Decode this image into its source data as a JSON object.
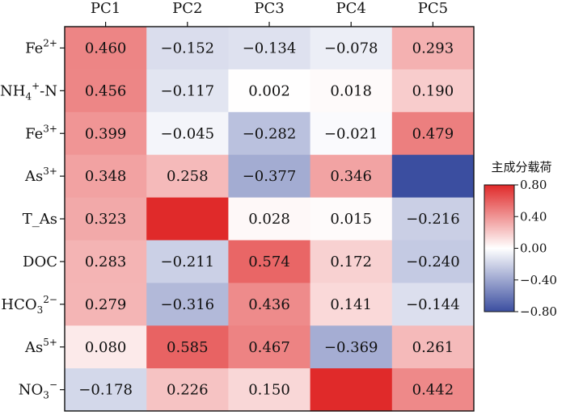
{
  "chart_data": {
    "type": "heatmap",
    "columns": [
      "PC1",
      "PC2",
      "PC3",
      "PC4",
      "PC5"
    ],
    "rows": [
      {
        "main": "Fe",
        "sup": "2+",
        "tail": ""
      },
      {
        "main": "NH",
        "sub": "4",
        "sup": "+",
        "tail": "-N"
      },
      {
        "main": "Fe",
        "sup": "3+",
        "tail": ""
      },
      {
        "main": "As",
        "sup": "3+",
        "tail": ""
      },
      {
        "main": "T_As",
        "tail": ""
      },
      {
        "main": "DOC",
        "tail": ""
      },
      {
        "main": "HCO",
        "sub": "3",
        "sup": "2−",
        "tail": ""
      },
      {
        "main": "As",
        "sup": "5+",
        "tail": ""
      },
      {
        "main": "NO",
        "sub": "3",
        "sup": "−",
        "tail": ""
      }
    ],
    "values": [
      [
        0.46,
        -0.152,
        -0.134,
        -0.078,
        0.293
      ],
      [
        0.456,
        -0.117,
        0.002,
        0.018,
        0.19
      ],
      [
        0.399,
        -0.045,
        -0.282,
        -0.021,
        0.479
      ],
      [
        0.348,
        0.258,
        -0.377,
        0.346,
        -0.8
      ],
      [
        0.323,
        0.8,
        0.028,
        0.015,
        -0.216
      ],
      [
        0.283,
        -0.211,
        0.574,
        0.172,
        -0.24
      ],
      [
        0.279,
        -0.316,
        0.436,
        0.141,
        -0.144
      ],
      [
        0.08,
        0.585,
        0.467,
        -0.369,
        0.261
      ],
      [
        -0.178,
        0.226,
        0.15,
        0.8,
        0.442
      ]
    ],
    "labels": [
      [
        "0.460",
        "−0.152",
        "−0.134",
        "−0.078",
        "0.293"
      ],
      [
        "0.456",
        "−0.117",
        "0.002",
        "0.018",
        "0.190"
      ],
      [
        "0.399",
        "−0.045",
        "−0.282",
        "−0.021",
        "0.479"
      ],
      [
        "0.348",
        "0.258",
        "−0.377",
        "0.346",
        ""
      ],
      [
        "0.323",
        "",
        "0.028",
        "0.015",
        "−0.216"
      ],
      [
        "0.283",
        "−0.211",
        "0.574",
        "0.172",
        "−0.240"
      ],
      [
        "0.279",
        "−0.316",
        "0.436",
        "0.141",
        "−0.144"
      ],
      [
        "0.080",
        "0.585",
        "0.467",
        "−0.369",
        "0.261"
      ],
      [
        "−0.178",
        "0.226",
        "0.150",
        "",
        "0.442"
      ]
    ],
    "colorbar": {
      "title": "主成分载荷",
      "min": -0.8,
      "max": 0.8,
      "ticks": [
        0.8,
        0.4,
        0.0,
        -0.4,
        -0.8
      ],
      "tick_labels": [
        "0.80",
        "0.40",
        "0.00",
        "−0.40",
        "−0.80"
      ],
      "colors": {
        "negative": "#3b4ea0",
        "zero": "#ffffff",
        "positive": "#e02a2a"
      }
    }
  }
}
